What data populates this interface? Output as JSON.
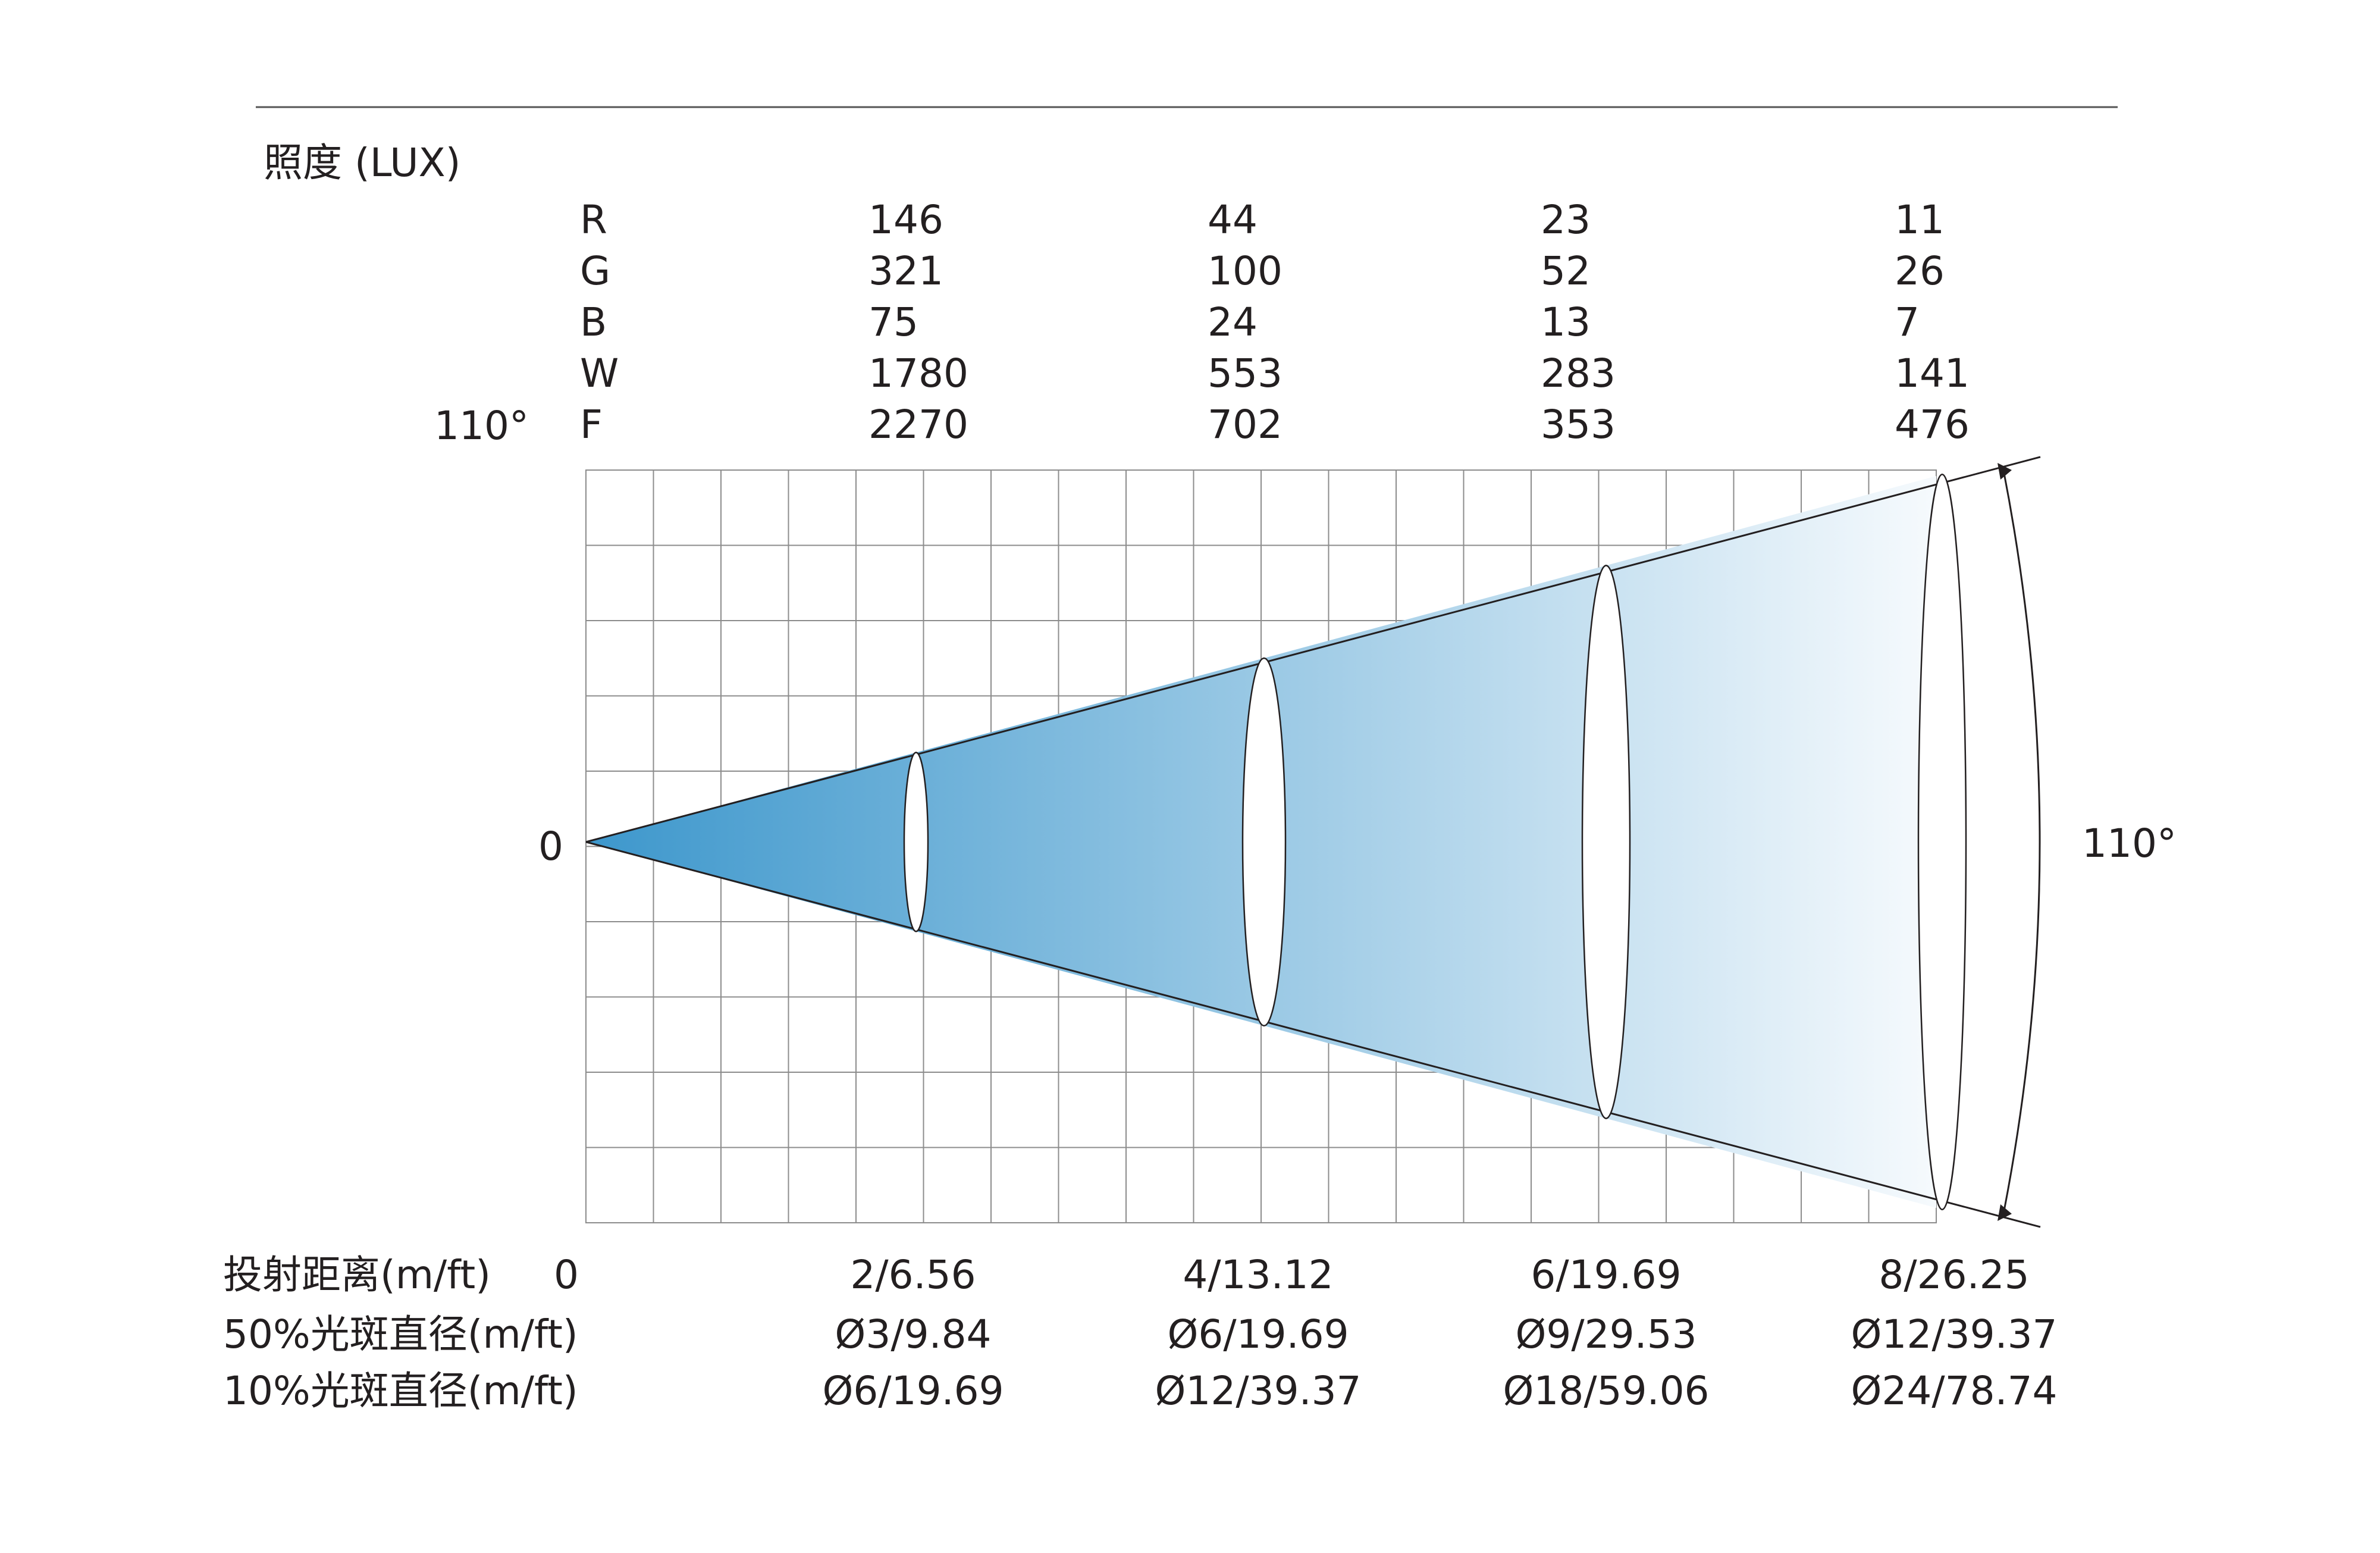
{
  "header": {
    "illuminance_label": "照度 (LUX)"
  },
  "beam": {
    "angle_label_left": "110°",
    "angle_label_right": "110°",
    "center_label": "0",
    "gradient_start_color": "#3d97cc",
    "gradient_end_color": "#f6fafd",
    "grid_color": "#8c8c8c",
    "line_color": "#231f20"
  },
  "lux_table": {
    "rows": [
      {
        "channel": "R",
        "values": [
          "146",
          "44",
          "23",
          "11"
        ]
      },
      {
        "channel": "G",
        "values": [
          "321",
          "100",
          "52",
          "26"
        ]
      },
      {
        "channel": "B",
        "values": [
          "75",
          "24",
          "13",
          "7"
        ]
      },
      {
        "channel": "W",
        "values": [
          "1780",
          "553",
          "283",
          "141"
        ]
      },
      {
        "channel": "F",
        "values": [
          "2270",
          "702",
          "353",
          "476"
        ]
      }
    ]
  },
  "bottom_table": {
    "rows": [
      {
        "label": "投射距离(m/ft)",
        "origin": "0",
        "values": [
          "2/6.56",
          "4/13.12",
          "6/19.69",
          "8/26.25"
        ]
      },
      {
        "label": "50%光斑直径(m/ft)",
        "values": [
          "Ø3/9.84",
          "Ø6/19.69",
          "Ø9/29.53",
          "Ø12/39.37"
        ]
      },
      {
        "label": "10%光斑直径(m/ft)",
        "values": [
          "Ø6/19.69",
          "Ø12/39.37",
          "Ø18/59.06",
          "Ø24/78.74"
        ]
      }
    ]
  }
}
